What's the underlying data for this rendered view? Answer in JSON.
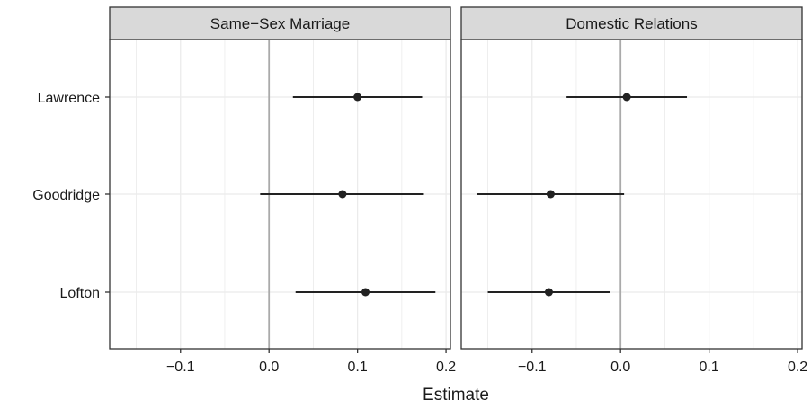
{
  "chart_data": {
    "type": "scatter",
    "subtype": "coefficient-plot-with-intervals",
    "xlabel": "Estimate",
    "ylabel": "",
    "xlim": [
      -0.18,
      0.205
    ],
    "x_ticks": [
      -0.1,
      0.0,
      0.1,
      0.2
    ],
    "x_tick_labels": [
      "−0.1",
      "0.0",
      "0.1",
      "0.2"
    ],
    "categories": [
      "Lawrence",
      "Goodridge",
      "Lofton"
    ],
    "reference_line": 0.0,
    "grid": true,
    "colors": {
      "point": "#222222",
      "interval": "#222222",
      "strip_fill": "#d9d9d9",
      "grid": "#ebebeb",
      "reference": "#aaaaaa",
      "border": "#333333"
    },
    "panels": [
      {
        "title": "Same−Sex Marriage",
        "points": [
          {
            "label": "Lawrence",
            "estimate": 0.1,
            "lower": 0.027,
            "upper": 0.173
          },
          {
            "label": "Goodridge",
            "estimate": 0.083,
            "lower": -0.01,
            "upper": 0.175
          },
          {
            "label": "Lofton",
            "estimate": 0.109,
            "lower": 0.03,
            "upper": 0.188
          }
        ]
      },
      {
        "title": "Domestic Relations",
        "points": [
          {
            "label": "Lawrence",
            "estimate": 0.007,
            "lower": -0.061,
            "upper": 0.075
          },
          {
            "label": "Goodridge",
            "estimate": -0.079,
            "lower": -0.162,
            "upper": 0.004
          },
          {
            "label": "Lofton",
            "estimate": -0.081,
            "lower": -0.15,
            "upper": -0.012
          }
        ]
      }
    ]
  }
}
